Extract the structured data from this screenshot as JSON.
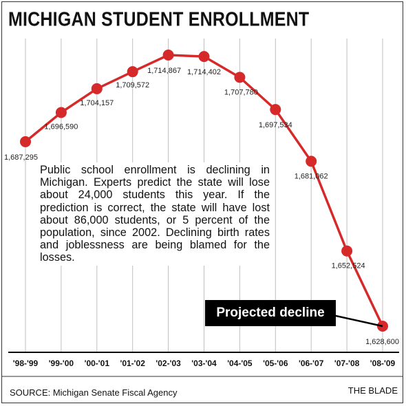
{
  "title": "MICHIGAN STUDENT ENROLLMENT",
  "note": "Public school enrollment is declining in Michigan. Experts predict the state will lose about 24,000 students this year. If the prediction is correct, the state will have lost about 86,000 students, or 5 percent of the population, since 2002. Declining birth rates and joblessness are being blamed for the losses.",
  "callout": "Projected decline",
  "source": "SOURCE: Michigan Senate Fiscal Agency",
  "credit": "THE BLADE",
  "colors": {
    "line": "#d62a2a",
    "marker": "#d62a2a",
    "grid": "#bfbfbf",
    "axis": "#000000"
  },
  "chart_data": {
    "type": "line",
    "title": "MICHIGAN STUDENT ENROLLMENT",
    "categories": [
      "'98-'99",
      "'99-'00",
      "'00-'01",
      "'01-'02",
      "'02-'03",
      "'03-'04",
      "'04-'05",
      "'05-'06",
      "'06-'07",
      "'07-'08",
      "'08-'09"
    ],
    "values": [
      1687295,
      1696590,
      1704157,
      1709572,
      1714867,
      1714402,
      1707780,
      1697534,
      1681062,
      1652524,
      1628600
    ],
    "value_labels": [
      "1,687,295",
      "1,696,590",
      "1,704,157",
      "1,709,572",
      "1,714,867",
      "1,714,402",
      "1,707,780",
      "1,697,534",
      "1,681,062",
      "1,652,524",
      "1,628,600"
    ],
    "grid": "vertical",
    "annotation": "Projected decline"
  }
}
